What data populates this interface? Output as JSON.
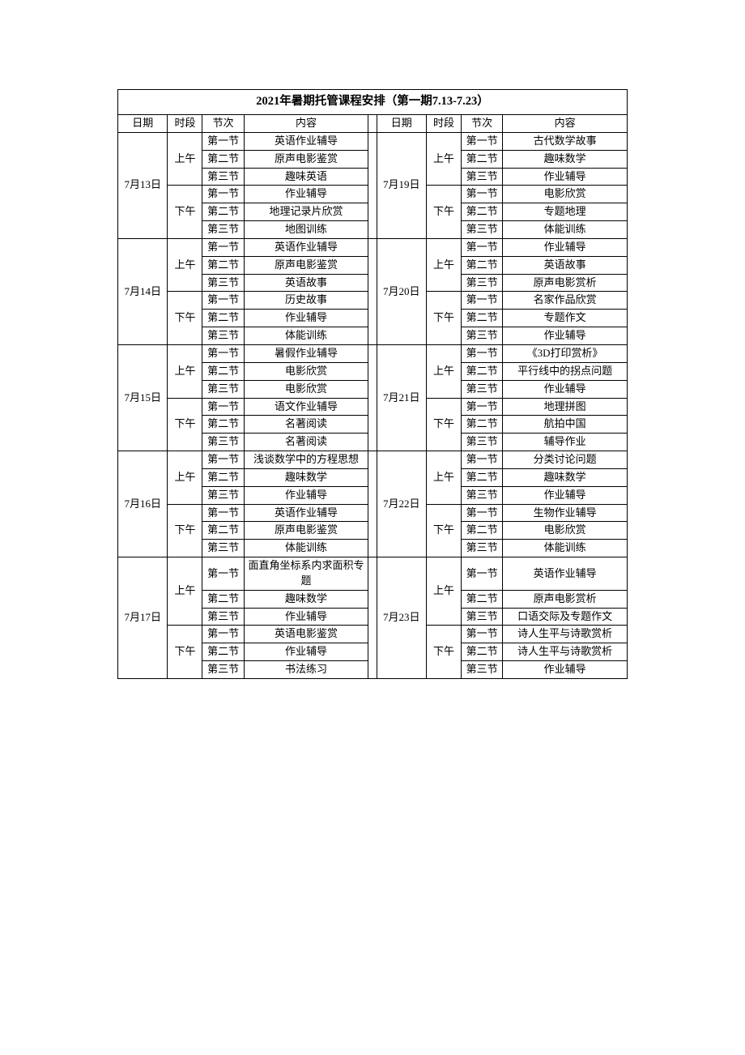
{
  "title": "2021年暑期托管课程安排（第一期7.13-7.23）",
  "headers": {
    "date": "日期",
    "slot": "时段",
    "period": "节次",
    "content": "内容"
  },
  "slots": {
    "am": "上午",
    "pm": "下午"
  },
  "periods": {
    "p1": "第一节",
    "p2": "第二节",
    "p3": "第三节"
  },
  "left": [
    {
      "date": "7月13日",
      "am": [
        "英语作业辅导",
        "原声电影鉴赏",
        "趣味英语"
      ],
      "pm": [
        "作业辅导",
        "地理记录片欣赏",
        "地图训练"
      ]
    },
    {
      "date": "7月14日",
      "am": [
        "英语作业辅导",
        "原声电影鉴赏",
        "英语故事"
      ],
      "pm": [
        "历史故事",
        "作业辅导",
        "体能训练"
      ]
    },
    {
      "date": "7月15日",
      "am": [
        "暑假作业辅导",
        "电影欣赏",
        "电影欣赏"
      ],
      "pm": [
        "语文作业辅导",
        "名著阅读",
        "名著阅读"
      ]
    },
    {
      "date": "7月16日",
      "am": [
        "浅谈数学中的方程思想",
        "趣味数学",
        "作业辅导"
      ],
      "pm": [
        "英语作业辅导",
        "原声电影鉴赏",
        "体能训练"
      ]
    },
    {
      "date": "7月17日",
      "am": [
        "面直角坐标系内求面积专题",
        "趣味数学",
        "作业辅导"
      ],
      "pm": [
        "英语电影鉴赏",
        "作业辅导",
        "书法练习"
      ]
    }
  ],
  "right": [
    {
      "date": "7月19日",
      "am": [
        "古代数学故事",
        "趣味数学",
        "作业辅导"
      ],
      "pm": [
        "电影欣赏",
        "专题地理",
        "体能训练"
      ]
    },
    {
      "date": "7月20日",
      "am": [
        "作业辅导",
        "英语故事",
        "原声电影赏析"
      ],
      "pm": [
        "名家作品欣赏",
        "专题作文",
        "作业辅导"
      ]
    },
    {
      "date": "7月21日",
      "am": [
        "《3D打印赏析》",
        "平行线中的拐点问题",
        "作业辅导"
      ],
      "pm": [
        "地理拼图",
        "航拍中国",
        "辅导作业"
      ]
    },
    {
      "date": "7月22日",
      "am": [
        "分类讨论问题",
        "趣味数学",
        "作业辅导"
      ],
      "pm": [
        "生物作业辅导",
        "电影欣赏",
        "体能训练"
      ]
    },
    {
      "date": "7月23日",
      "am": [
        "英语作业辅导",
        "原声电影赏析",
        "口语交际及专题作文"
      ],
      "pm": [
        "诗人生平与诗歌赏析",
        "诗人生平与诗歌赏析",
        "作业辅导"
      ]
    }
  ]
}
